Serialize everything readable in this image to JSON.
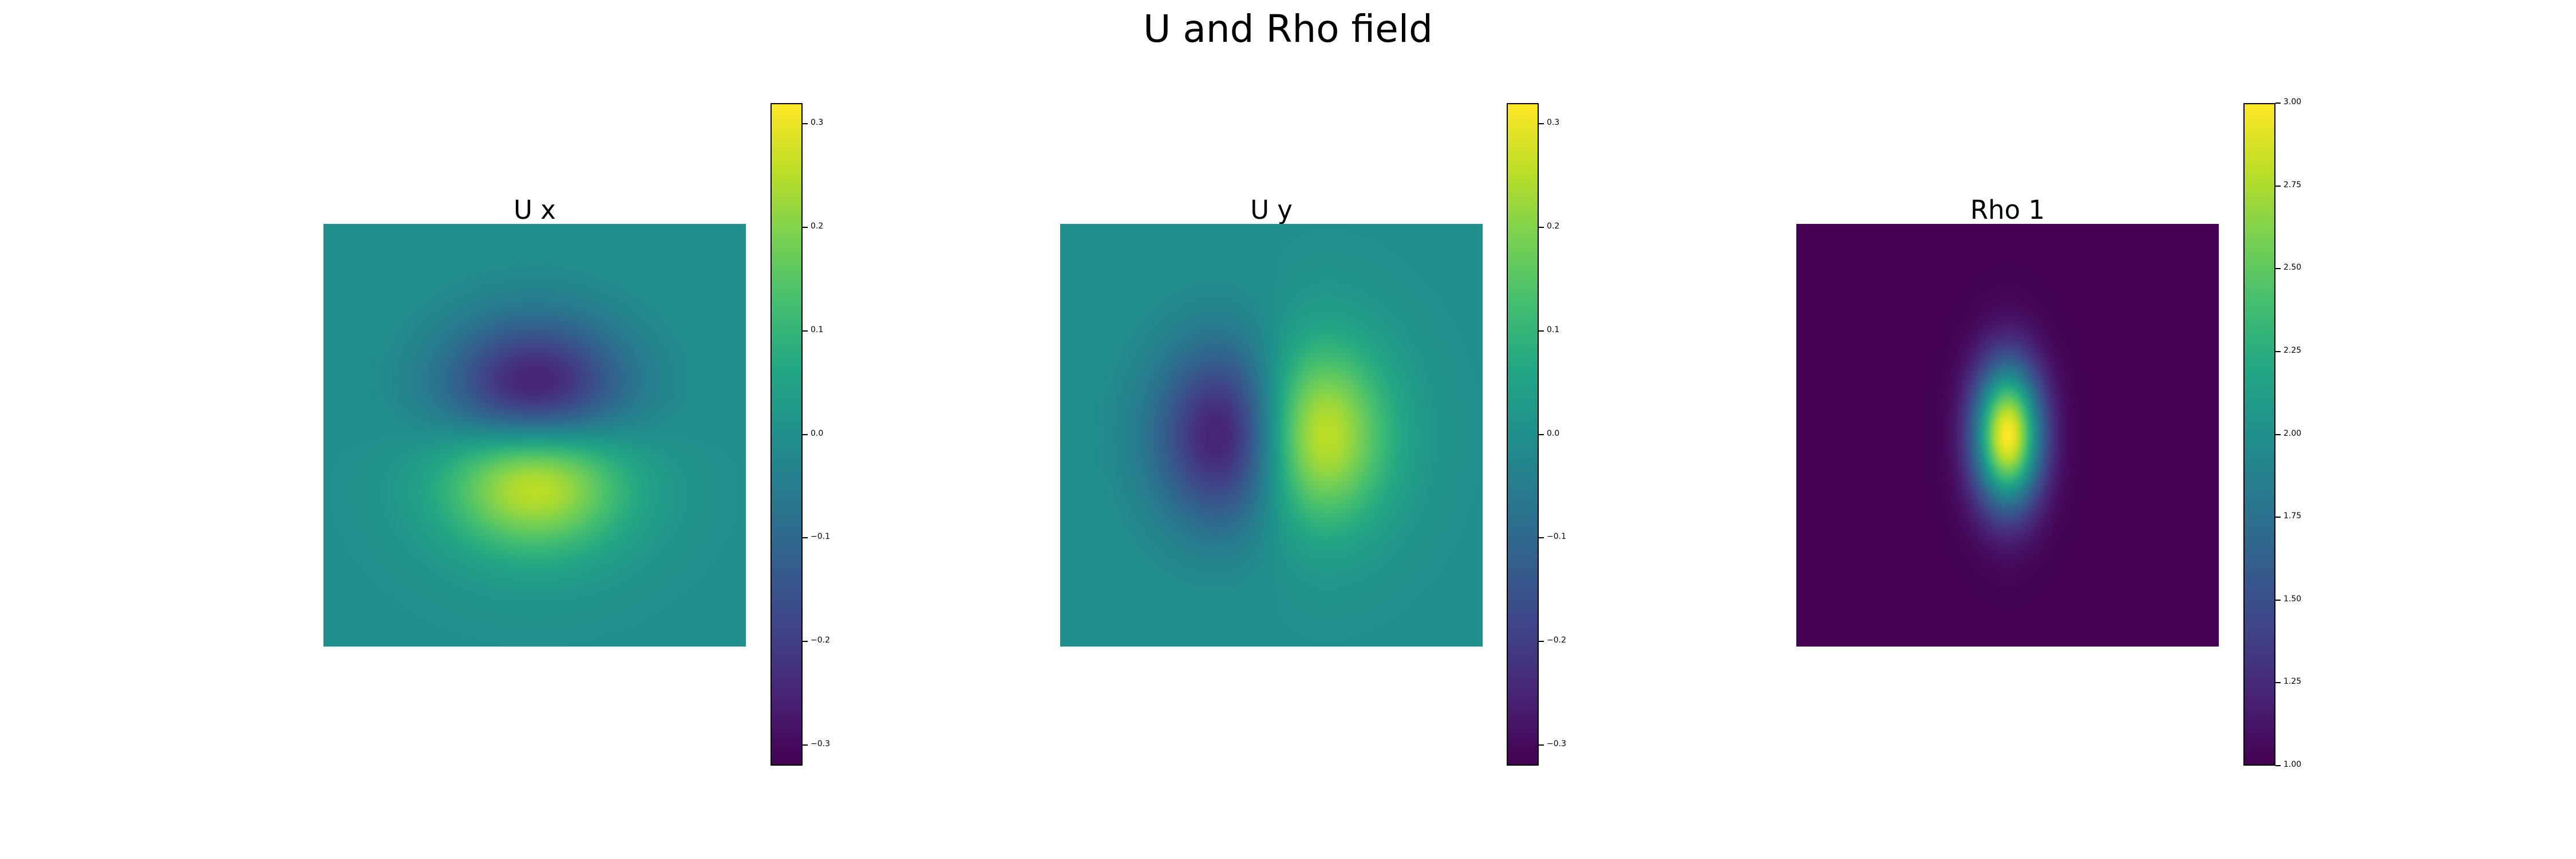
{
  "figure": {
    "title": "U and Rho field"
  },
  "colormap": "viridis",
  "chart_data": [
    {
      "type": "heatmap",
      "title": "U x",
      "field": "dipole-vertical",
      "center_value": 0.0,
      "min_location": "upper-center",
      "max_location": "lower-center",
      "colorbar": {
        "vmin": -0.32,
        "vmax": 0.32,
        "ticks": [
          0.3,
          0.2,
          0.1,
          0.0,
          -0.1,
          -0.2,
          -0.3
        ],
        "tick_labels": [
          "0.3",
          "0.2",
          "0.1",
          "0.0",
          "−0.1",
          "−0.2",
          "−0.3"
        ]
      },
      "grid": false,
      "axes_visible": false
    },
    {
      "type": "heatmap",
      "title": "U y",
      "field": "dipole-horizontal",
      "center_value": 0.0,
      "min_location": "left-center",
      "max_location": "right-center",
      "colorbar": {
        "vmin": -0.32,
        "vmax": 0.32,
        "ticks": [
          0.3,
          0.2,
          0.1,
          0.0,
          -0.1,
          -0.2,
          -0.3
        ],
        "tick_labels": [
          "0.3",
          "0.2",
          "0.1",
          "0.0",
          "−0.1",
          "−0.2",
          "−0.3"
        ]
      },
      "grid": false,
      "axes_visible": false
    },
    {
      "type": "heatmap",
      "title": "Rho 1",
      "field": "gaussian-blob",
      "background_value": 1.0,
      "peak_value": 3.0,
      "peak_location": "center",
      "shape": "vertically elongated ellipse",
      "colorbar": {
        "vmin": 1.0,
        "vmax": 3.0,
        "ticks": [
          3.0,
          2.75,
          2.5,
          2.25,
          2.0,
          1.75,
          1.5,
          1.25,
          1.0
        ],
        "tick_labels": [
          "3.00",
          "2.75",
          "2.50",
          "2.25",
          "2.00",
          "1.75",
          "1.50",
          "1.25",
          "1.00"
        ]
      },
      "grid": false,
      "axes_visible": false
    }
  ]
}
